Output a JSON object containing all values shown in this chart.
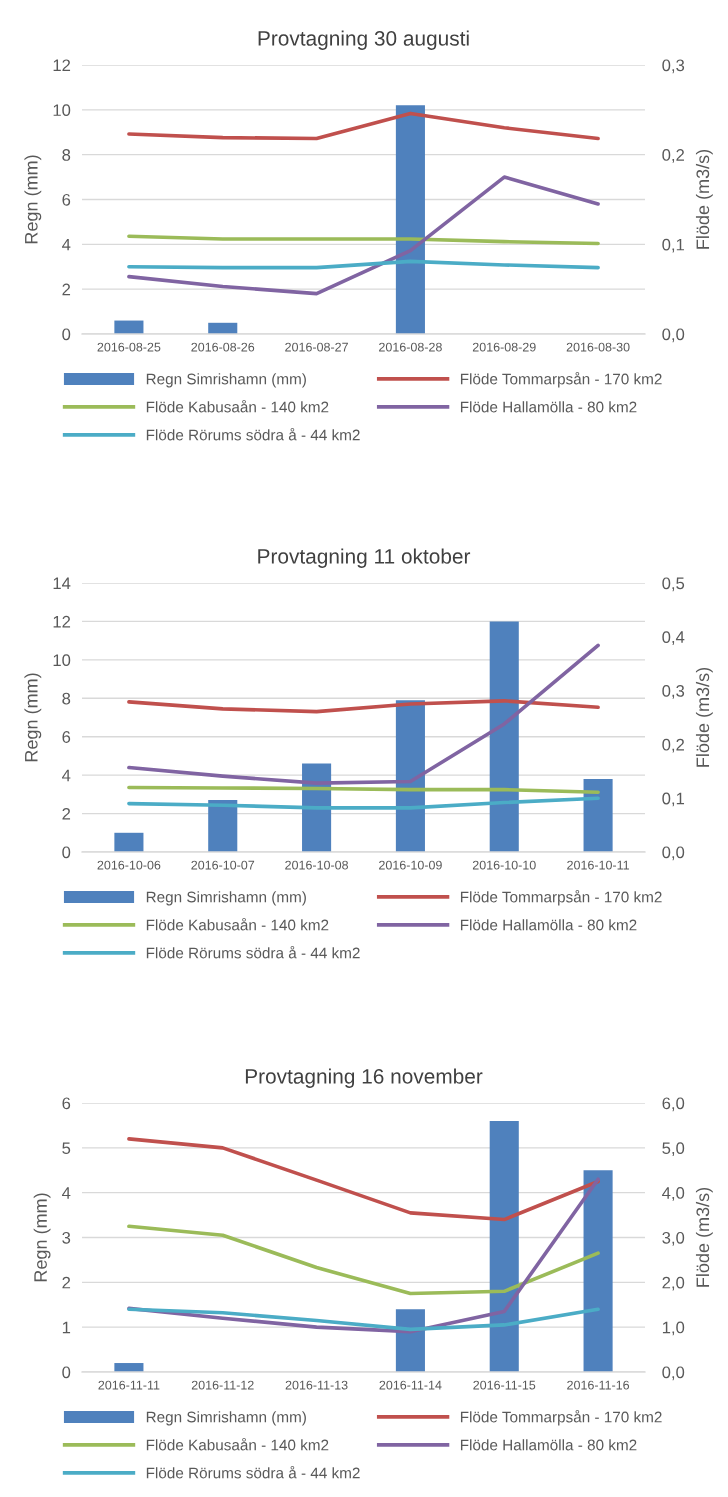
{
  "chart_data": [
    {
      "type": "bar",
      "title": "Provtagning 30 augusti",
      "ylabel": "Regn (mm)",
      "y2label": "Flöde (m3/s)",
      "categories": [
        "2016-08-25",
        "2016-08-26",
        "2016-08-27",
        "2016-08-28",
        "2016-08-29",
        "2016-08-30"
      ],
      "series": [
        {
          "name": "Regn Simrishamn (mm)",
          "color": "#4f81bd",
          "values": [
            0.6,
            0.5,
            0,
            10.2,
            0,
            0
          ]
        },
        {
          "name": "Flöde Tommarpsån - 170 km2",
          "type": "line",
          "axis": "y2",
          "color": "#c0504d",
          "values": [
            0.223,
            0.219,
            0.218,
            0.246,
            0.23,
            0.218
          ]
        },
        {
          "name": "Flöde Kabusaån - 140 km2",
          "type": "line",
          "axis": "y2",
          "color": "#9bbb59",
          "values": [
            0.109,
            0.106,
            0.106,
            0.106,
            0.103,
            0.101
          ]
        },
        {
          "name": "Flöde Hallamölla - 80 km2",
          "type": "line",
          "axis": "y2",
          "color": "#8064a2",
          "values": [
            0.064,
            0.053,
            0.045,
            0.093,
            0.175,
            0.145
          ]
        },
        {
          "name": "Flöde Rörums södra å - 44 km2",
          "type": "line",
          "axis": "y2",
          "color": "#4bacc6",
          "values": [
            0.075,
            0.074,
            0.074,
            0.081,
            0.077,
            0.074
          ]
        }
      ],
      "ylim": [
        0,
        12
      ],
      "yticks": [
        0,
        2,
        4,
        6,
        8,
        10,
        12
      ],
      "y2lim": [
        0,
        0.3
      ],
      "y2ticks": [
        {
          "value": 0,
          "label": "0,0"
        },
        {
          "value": 0.1,
          "label": "0,1"
        },
        {
          "value": 0.2,
          "label": "0,2"
        },
        {
          "value": 0.3,
          "label": "0,3"
        }
      ],
      "grid": "y",
      "legend": "bottom",
      "marker": "none",
      "line_style": "solid"
    },
    {
      "type": "bar",
      "title": "Provtagning 11 oktober",
      "ylabel": "Regn (mm)",
      "y2label": "Flöde (m3/s)",
      "categories": [
        "2016-10-06",
        "2016-10-07",
        "2016-10-08",
        "2016-10-09",
        "2016-10-10",
        "2016-10-11"
      ],
      "series": [
        {
          "name": "Regn Simrishamn (mm)",
          "color": "#4f81bd",
          "values": [
            1.0,
            2.7,
            4.6,
            7.9,
            12.0,
            3.8
          ]
        },
        {
          "name": "Flöde Tommarpsån - 170 km2",
          "type": "line",
          "axis": "y2",
          "color": "#c0504d",
          "values": [
            0.279,
            0.266,
            0.261,
            0.275,
            0.281,
            0.269
          ]
        },
        {
          "name": "Flöde Kabusaån - 140 km2",
          "type": "line",
          "axis": "y2",
          "color": "#9bbb59",
          "values": [
            0.12,
            0.119,
            0.118,
            0.116,
            0.116,
            0.111
          ]
        },
        {
          "name": "Flöde Hallamölla - 80 km2",
          "type": "line",
          "axis": "y2",
          "color": "#8064a2",
          "values": [
            0.157,
            0.141,
            0.128,
            0.131,
            0.238,
            0.384
          ]
        },
        {
          "name": "Flöde Rörums södra å - 44 km2",
          "type": "line",
          "axis": "y2",
          "color": "#4bacc6",
          "values": [
            0.09,
            0.087,
            0.082,
            0.082,
            0.092,
            0.1
          ]
        }
      ],
      "ylim": [
        0,
        14
      ],
      "yticks": [
        0,
        2,
        4,
        6,
        8,
        10,
        12,
        14
      ],
      "y2lim": [
        0,
        0.5
      ],
      "y2ticks": [
        {
          "value": 0,
          "label": "0,0"
        },
        {
          "value": 0.1,
          "label": "0,1"
        },
        {
          "value": 0.2,
          "label": "0,2"
        },
        {
          "value": 0.3,
          "label": "0,3"
        },
        {
          "value": 0.4,
          "label": "0,4"
        },
        {
          "value": 0.5,
          "label": "0,5"
        }
      ],
      "grid": "y",
      "legend": "bottom",
      "marker": "none",
      "line_style": "solid"
    },
    {
      "type": "bar",
      "title": "Provtagning 16 november",
      "ylabel": "Regn (mm)",
      "y2label": "Flöde (m3/s)",
      "categories": [
        "2016-11-11",
        "2016-11-12",
        "2016-11-13",
        "2016-11-14",
        "2016-11-15",
        "2016-11-16"
      ],
      "series": [
        {
          "name": "Regn Simrishamn (mm)",
          "color": "#4f81bd",
          "values": [
            0.2,
            0,
            0,
            1.4,
            5.6,
            4.5
          ]
        },
        {
          "name": "Flöde Tommarpsån - 170 km2",
          "type": "line",
          "axis": "y2",
          "color": "#c0504d",
          "values": [
            5.2,
            5.0,
            4.28,
            3.55,
            3.4,
            4.25
          ]
        },
        {
          "name": "Flöde Kabusaån - 140 km2",
          "type": "line",
          "axis": "y2",
          "color": "#9bbb59",
          "values": [
            3.25,
            3.05,
            2.33,
            1.75,
            1.8,
            2.65
          ]
        },
        {
          "name": "Flöde Hallamölla - 80 km2",
          "type": "line",
          "axis": "y2",
          "color": "#8064a2",
          "values": [
            1.42,
            1.2,
            1.0,
            0.9,
            1.35,
            4.3
          ]
        },
        {
          "name": "Flöde Rörums södra å - 44 km2",
          "type": "line",
          "axis": "y2",
          "color": "#4bacc6",
          "values": [
            1.4,
            1.32,
            1.15,
            0.95,
            1.05,
            1.4
          ]
        }
      ],
      "ylim": [
        0,
        6
      ],
      "yticks": [
        0,
        1,
        2,
        3,
        4,
        5,
        6
      ],
      "y2lim": [
        0,
        6
      ],
      "y2ticks": [
        {
          "value": 0,
          "label": "0,0"
        },
        {
          "value": 1,
          "label": "1,0"
        },
        {
          "value": 2,
          "label": "2,0"
        },
        {
          "value": 3,
          "label": "3,0"
        },
        {
          "value": 4,
          "label": "4,0"
        },
        {
          "value": 5,
          "label": "5,0"
        },
        {
          "value": 6,
          "label": "6,0"
        }
      ],
      "grid": "y",
      "legend": "bottom",
      "marker": "none",
      "line_style": "solid"
    }
  ]
}
